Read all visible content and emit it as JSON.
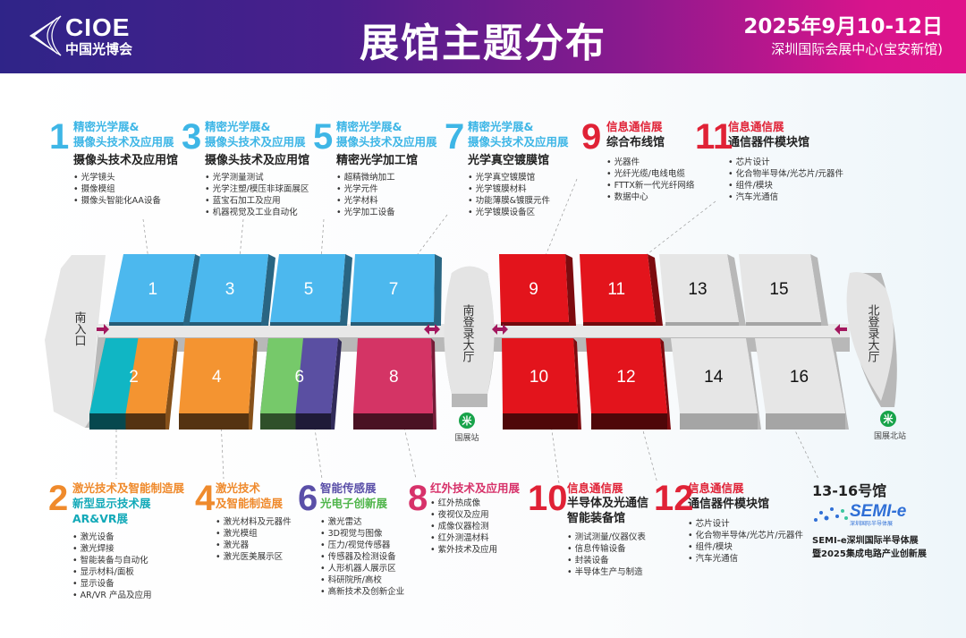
{
  "header": {
    "logo_en": "CIOE",
    "logo_cn": "中国光博会",
    "title": "展馆主题分布",
    "date": "2025年9月10-12日",
    "venue": "深圳国际会展中心(宝安新馆)"
  },
  "colors": {
    "optics_blue": "#4cb8ee",
    "info_red": "#e3141c",
    "laser_orange": "#f49431",
    "display_teal": "#10b6c4",
    "sensing_green": "#76c96a",
    "optoelectronic_purple": "#5a4fa2",
    "infrared_pink": "#d43465",
    "semi_gray": "#e6e6e6",
    "arrow": "#a3175e"
  },
  "top_blocks": [
    {
      "num": "1",
      "title": "精密光学展&",
      "title2": "摄像头技术及应用展",
      "hall": "摄像头技术及应用馆",
      "items": [
        "光学镜头",
        "摄像模组",
        "摄像头智能化AA设备"
      ]
    },
    {
      "num": "3",
      "title": "精密光学展&",
      "title2": "摄像头技术及应用展",
      "hall": "摄像头技术及应用馆",
      "items": [
        "光学测量测试",
        "光学注塑/模压非球面展区",
        "蓝宝石加工及应用",
        "机器视觉及工业自动化"
      ]
    },
    {
      "num": "5",
      "title": "精密光学展&",
      "title2": "摄像头技术及应用展",
      "hall": "精密光学加工馆",
      "items": [
        "超精微纳加工",
        "光学元件",
        "光学材料",
        "光学加工设备"
      ]
    },
    {
      "num": "7",
      "title": "精密光学展&",
      "title2": "摄像头技术及应用展",
      "hall": "光学真空镀膜馆",
      "items": [
        "光学真空镀膜馆",
        "光学镀膜材料",
        "功能薄膜&镀膜元件",
        "光学镀膜设备区"
      ]
    },
    {
      "num": "9",
      "title": "信息通信展",
      "hall": "综合布线馆",
      "items": [
        "光器件",
        "光纤光缆/电线电缆",
        "FTTX新一代光纤网络",
        "数据中心"
      ]
    },
    {
      "num": "11",
      "title": "信息通信展",
      "hall": "通信器件模块馆",
      "items": [
        "芯片设计",
        "化合物半导体/光芯片/元器件",
        "组件/模块",
        "汽车光通信"
      ]
    }
  ],
  "bottom_blocks": [
    {
      "num": "2",
      "title": "激光技术及智能制造展",
      "title2": "新型显示技术展",
      "title3": "AR&VR展",
      "items": [
        "激光设备",
        "激光焊接",
        "智能装备与自动化",
        "显示材料/面板",
        "显示设备",
        "AR/VR 产品及应用"
      ]
    },
    {
      "num": "4",
      "title": "激光技术",
      "title2": "及智能制造展",
      "items": [
        "激光材料及元器件",
        "激光模组",
        "激光器",
        "激光医美展示区"
      ]
    },
    {
      "num": "6",
      "title": "智能传感展",
      "title2": "光电子创新展",
      "items": [
        "激光雷达",
        "3D视觉与图像",
        "压力/视觉传感器",
        "传感器及检测设备",
        "人形机器人展示区",
        "科研院所/高校",
        "高新技术及创新企业"
      ]
    },
    {
      "num": "8",
      "title": "红外技术及应用展",
      "items": [
        "红外热成像",
        "夜视仪及应用",
        "成像仪器检测",
        "红外测温材料",
        "紫外技术及应用"
      ]
    },
    {
      "num": "10",
      "title": "信息通信展",
      "hall": "半导体及光通信",
      "hall2": "智能装备馆",
      "items": [
        "测试测量/仪器仪表",
        "信息传输设备",
        "封装设备",
        "半导体生产与制造"
      ]
    },
    {
      "num": "12",
      "title": "信息通信展",
      "hall": "通信器件模块馆",
      "items": [
        "芯片设计",
        "化合物半导体/光芯片/元器件",
        "组件/模块",
        "汽车光通信"
      ]
    }
  ],
  "semi": {
    "title": "13-16号馆",
    "logo": "SEMI-e",
    "logo_sub": "深圳国际半导体展",
    "line1": "SEMI-e深圳国际半导体展",
    "line2": "暨2025集成电路产业创新展"
  },
  "map": {
    "halls": [
      "1",
      "2",
      "3",
      "4",
      "5",
      "6",
      "7",
      "8",
      "9",
      "10",
      "11",
      "12",
      "13",
      "14",
      "15",
      "16"
    ],
    "south_entrance": "南入口",
    "south_lobby": "南登录大厅",
    "north_lobby": "北登录大厅",
    "station_south": "国展站",
    "station_north": "国展北站"
  }
}
